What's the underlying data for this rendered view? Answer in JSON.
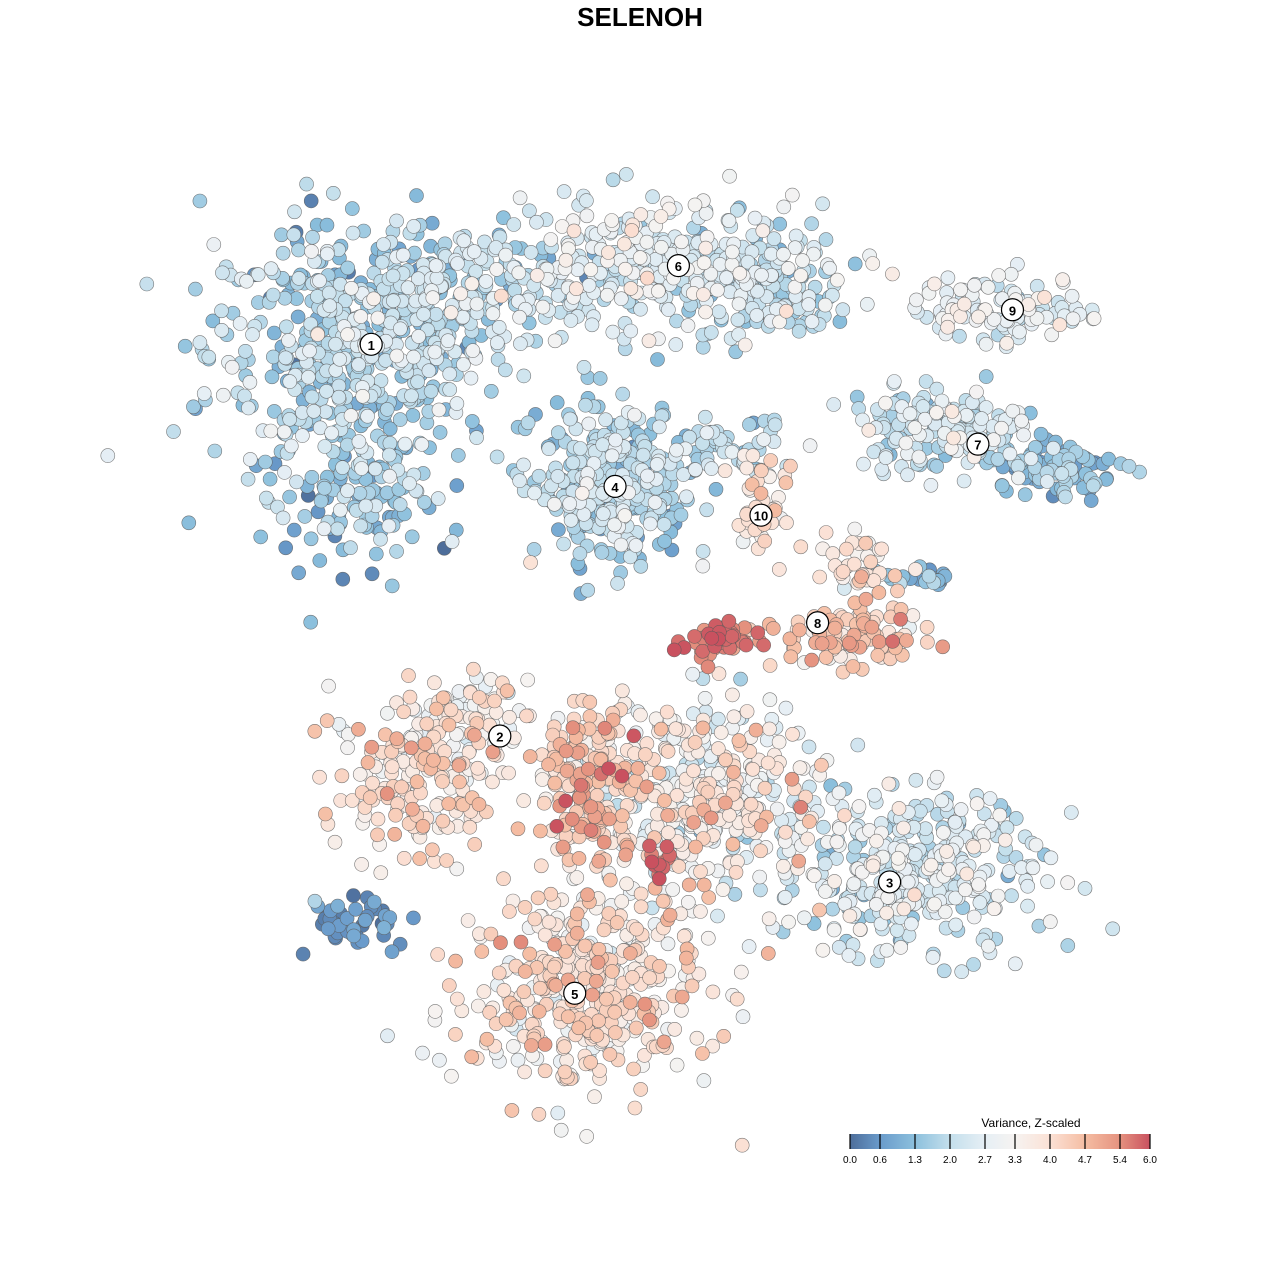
{
  "chart_data": {
    "type": "scatter",
    "title": "SELENOH",
    "xlabel": "",
    "ylabel": "",
    "xlim": [
      0,
      100
    ],
    "ylim": [
      0,
      100
    ],
    "grid": false,
    "legend": {
      "title": "Variance, Z-scaled",
      "placement": "bottom-right",
      "ticks": [
        "0.0",
        "0.6",
        "1.3",
        "2.0",
        "2.7",
        "3.3",
        "4.0",
        "4.7",
        "5.4",
        "6.0"
      ],
      "tick_values": [
        0.0,
        0.6,
        1.3,
        2.0,
        2.7,
        3.3,
        4.0,
        4.7,
        5.4,
        6.0
      ],
      "colors": [
        "#4d6d9a",
        "#6a9bcb",
        "#8cc0dd",
        "#c4dfec",
        "#e6eff5",
        "#f6f3f1",
        "#fbe1d5",
        "#f5bda3",
        "#e5927f",
        "#c9515f"
      ],
      "range": [
        0,
        6
      ]
    },
    "cluster_labels": [
      {
        "label": "1",
        "x": 22.0,
        "y": 80.8
      },
      {
        "label": "2",
        "x": 35.4,
        "y": 40.0
      },
      {
        "label": "3",
        "x": 76.0,
        "y": 24.8
      },
      {
        "label": "4",
        "x": 47.4,
        "y": 66.0
      },
      {
        "label": "5",
        "x": 43.2,
        "y": 13.2
      },
      {
        "label": "6",
        "x": 54.0,
        "y": 89.0
      },
      {
        "label": "7",
        "x": 85.2,
        "y": 70.4
      },
      {
        "label": "8",
        "x": 68.5,
        "y": 51.8
      },
      {
        "label": "9",
        "x": 88.8,
        "y": 84.4
      },
      {
        "label": "10",
        "x": 62.6,
        "y": 63.0
      }
    ],
    "point_groups": [
      {
        "cluster": "1",
        "cx": 20.0,
        "cy": 80.0,
        "sx": 7.5,
        "sy": 7.0,
        "n": 520,
        "mean": 1.8,
        "sd": 0.6
      },
      {
        "cluster": "1",
        "cx": 30.0,
        "cy": 86.0,
        "sx": 7.0,
        "sy": 3.5,
        "n": 200,
        "mean": 1.9,
        "sd": 0.6
      },
      {
        "cluster": "1",
        "cx": 20.0,
        "cy": 64.0,
        "sx": 4.0,
        "sy": 3.5,
        "n": 90,
        "mean": 1.6,
        "sd": 0.6
      },
      {
        "cluster": "6",
        "cx": 52.0,
        "cy": 89.0,
        "sx": 8.5,
        "sy": 3.2,
        "n": 330,
        "mean": 2.5,
        "sd": 0.6
      },
      {
        "cluster": "6",
        "cx": 64.0,
        "cy": 86.5,
        "sx": 4.0,
        "sy": 3.0,
        "n": 110,
        "mean": 1.9,
        "sd": 0.5
      },
      {
        "cluster": "4",
        "cx": 47.0,
        "cy": 66.0,
        "sx": 4.0,
        "sy": 4.0,
        "n": 340,
        "mean": 1.8,
        "sd": 0.6
      },
      {
        "cluster": "9",
        "cx": 87.5,
        "cy": 84.5,
        "sx": 4.5,
        "sy": 1.8,
        "n": 110,
        "mean": 2.8,
        "sd": 0.5
      },
      {
        "cluster": "7",
        "cx": 82.0,
        "cy": 72.0,
        "sx": 5.0,
        "sy": 2.0,
        "n": 170,
        "mean": 2.2,
        "sd": 0.6
      },
      {
        "cluster": "7",
        "cx": 93.0,
        "cy": 67.5,
        "sx": 3.5,
        "sy": 1.5,
        "n": 90,
        "mean": 1.3,
        "sd": 0.5
      },
      {
        "cluster": "7",
        "cx": 60.0,
        "cy": 70.0,
        "sx": 3.0,
        "sy": 1.5,
        "n": 60,
        "mean": 2.0,
        "sd": 0.6
      },
      {
        "cluster": "10",
        "cx": 62.6,
        "cy": 63.5,
        "sx": 1.3,
        "sy": 2.2,
        "n": 45,
        "mean": 3.9,
        "sd": 0.4
      },
      {
        "cluster": "8",
        "cx": 72.0,
        "cy": 50.5,
        "sx": 3.5,
        "sy": 1.6,
        "n": 130,
        "mean": 4.2,
        "sd": 0.6
      },
      {
        "cluster": "8",
        "cx": 73.0,
        "cy": 58.0,
        "sx": 1.6,
        "sy": 2.0,
        "n": 40,
        "mean": 3.8,
        "sd": 0.5
      },
      {
        "cluster": "8",
        "cx": 58.0,
        "cy": 50.0,
        "sx": 2.2,
        "sy": 1.0,
        "n": 50,
        "mean": 5.6,
        "sd": 0.3
      },
      {
        "cluster": "8",
        "cx": 79.0,
        "cy": 56.5,
        "sx": 2.0,
        "sy": 0.6,
        "n": 20,
        "mean": 1.2,
        "sd": 0.4
      },
      {
        "cluster": "2",
        "cx": 27.0,
        "cy": 36.0,
        "sx": 4.5,
        "sy": 4.0,
        "n": 190,
        "mean": 3.9,
        "sd": 0.6
      },
      {
        "cluster": "2",
        "cx": 33.0,
        "cy": 42.5,
        "sx": 3.0,
        "sy": 1.8,
        "n": 60,
        "mean": 3.3,
        "sd": 0.6
      },
      {
        "cluster": "3",
        "cx": 78.0,
        "cy": 26.0,
        "sx": 7.0,
        "sy": 4.5,
        "n": 360,
        "mean": 2.4,
        "sd": 0.6
      },
      {
        "cluster": "mixed",
        "cx": 56.0,
        "cy": 34.0,
        "sx": 7.0,
        "sy": 5.0,
        "n": 420,
        "mean": 3.3,
        "sd": 0.8
      },
      {
        "cluster": "mixed",
        "cx": 44.5,
        "cy": 35.0,
        "sx": 2.5,
        "sy": 4.0,
        "n": 140,
        "mean": 4.5,
        "sd": 0.6
      },
      {
        "cluster": "mixed",
        "cx": 52.0,
        "cy": 27.0,
        "sx": 0.8,
        "sy": 1.0,
        "n": 12,
        "mean": 5.8,
        "sd": 0.2
      },
      {
        "cluster": "5",
        "cx": 44.0,
        "cy": 14.0,
        "sx": 6.5,
        "sy": 5.5,
        "n": 430,
        "mean": 3.8,
        "sd": 0.6
      },
      {
        "cluster": "outlier",
        "cx": 20.5,
        "cy": 20.5,
        "sx": 2.5,
        "sy": 1.2,
        "n": 45,
        "mean": 0.5,
        "sd": 0.3
      }
    ]
  }
}
